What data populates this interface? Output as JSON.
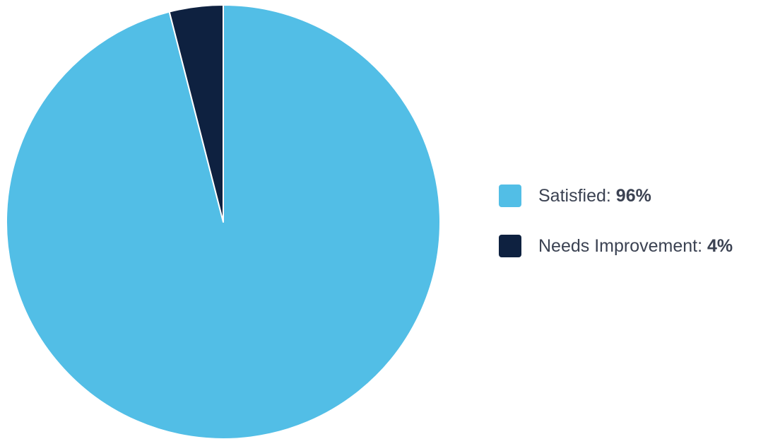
{
  "chart_data": {
    "type": "pie",
    "title": "",
    "slices": [
      {
        "label": "Satisfied",
        "value": 96,
        "display": "96%",
        "color": "#52bee6"
      },
      {
        "label": "Needs Improvement",
        "value": 4,
        "display": "4%",
        "color": "#0e2140"
      }
    ],
    "start_angle": "top",
    "direction": "clockwise",
    "legend_position": "right"
  },
  "legend": {
    "items": [
      {
        "label": "Satisfied:",
        "value": "96%"
      },
      {
        "label": "Needs Improvement:",
        "value": "4%"
      }
    ]
  }
}
